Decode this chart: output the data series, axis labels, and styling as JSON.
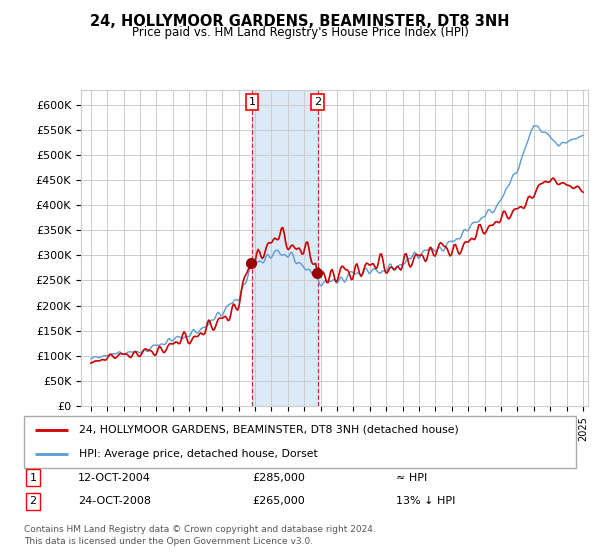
{
  "title": "24, HOLLYMOOR GARDENS, BEAMINSTER, DT8 3NH",
  "subtitle": "Price paid vs. HM Land Registry's House Price Index (HPI)",
  "ylabel_ticks": [
    "£0",
    "£50K",
    "£100K",
    "£150K",
    "£200K",
    "£250K",
    "£300K",
    "£350K",
    "£400K",
    "£450K",
    "£500K",
    "£550K",
    "£600K"
  ],
  "ylim": [
    0,
    620000
  ],
  "ytick_vals": [
    0,
    50000,
    100000,
    150000,
    200000,
    250000,
    300000,
    350000,
    400000,
    450000,
    500000,
    550000,
    600000
  ],
  "hpi_color": "#5b9bd5",
  "price_color": "#cc0000",
  "marker_color": "#990000",
  "shade_color": "#dce9f7",
  "legend_line1": "24, HOLLYMOOR GARDENS, BEAMINSTER, DT8 3NH (detached house)",
  "legend_line2": "HPI: Average price, detached house, Dorset",
  "table_row1_num": "1",
  "table_row1_date": "12-OCT-2004",
  "table_row1_price": "£285,000",
  "table_row1_rel": "≈ HPI",
  "table_row2_num": "2",
  "table_row2_date": "24-OCT-2008",
  "table_row2_price": "£265,000",
  "table_row2_rel": "13% ↓ HPI",
  "footer": "Contains HM Land Registry data © Crown copyright and database right 2024.\nThis data is licensed under the Open Government Licence v3.0.",
  "background_color": "#ffffff",
  "grid_color": "#cccccc"
}
